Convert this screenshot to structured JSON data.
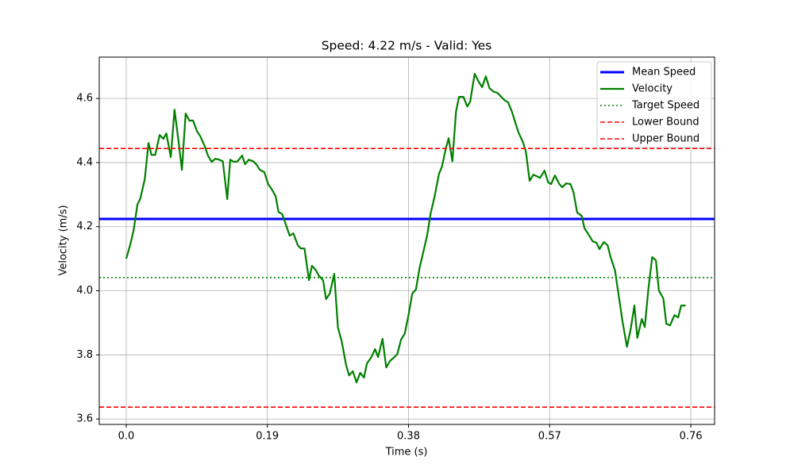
{
  "chart_data": {
    "type": "line",
    "title": "Speed: 4.22 m/s - Valid: Yes",
    "xlabel": "Time (s)",
    "ylabel": "Velocity (m/s)",
    "x": [
      0,
      0.005,
      0.01,
      0.015,
      0.019,
      0.025,
      0.03,
      0.034,
      0.039,
      0.045,
      0.05,
      0.054,
      0.06,
      0.065,
      0.07,
      0.075,
      0.08,
      0.085,
      0.09,
      0.095,
      0.1,
      0.106,
      0.11,
      0.115,
      0.12,
      0.125,
      0.13,
      0.136,
      0.14,
      0.145,
      0.15,
      0.156,
      0.16,
      0.165,
      0.171,
      0.175,
      0.18,
      0.186,
      0.191,
      0.195,
      0.201,
      0.205,
      0.21,
      0.215,
      0.22,
      0.225,
      0.231,
      0.235,
      0.24,
      0.246,
      0.25,
      0.255,
      0.259,
      0.265,
      0.269,
      0.274,
      0.28,
      0.285,
      0.29,
      0.296,
      0.3,
      0.305,
      0.31,
      0.315,
      0.32,
      0.324,
      0.33,
      0.335,
      0.339,
      0.345,
      0.35,
      0.355,
      0.36,
      0.365,
      0.37,
      0.375,
      0.38,
      0.385,
      0.39,
      0.395,
      0.4,
      0.405,
      0.41,
      0.415,
      0.421,
      0.425,
      0.43,
      0.434,
      0.439,
      0.444,
      0.448,
      0.454,
      0.459,
      0.463,
      0.469,
      0.474,
      0.479,
      0.484,
      0.489,
      0.494,
      0.5,
      0.504,
      0.509,
      0.514,
      0.519,
      0.524,
      0.528,
      0.534,
      0.538,
      0.543,
      0.548,
      0.553,
      0.557,
      0.563,
      0.568,
      0.572,
      0.577,
      0.583,
      0.587,
      0.592,
      0.598,
      0.602,
      0.607,
      0.613,
      0.617,
      0.622,
      0.628,
      0.633,
      0.637,
      0.643,
      0.648,
      0.652,
      0.658,
      0.663,
      0.668,
      0.674,
      0.679,
      0.684,
      0.688,
      0.694,
      0.698,
      0.703,
      0.708,
      0.713,
      0.717,
      0.723,
      0.727,
      0.732,
      0.738,
      0.743,
      0.747,
      0.753
    ],
    "series": [
      {
        "name": "Mean Speed",
        "color": "#0000ff",
        "style": "solid",
        "hline": 4.224
      },
      {
        "name": "Velocity",
        "color": "#008000",
        "style": "solid",
        "values": [
          4.1,
          4.14,
          4.189,
          4.268,
          4.288,
          4.348,
          4.461,
          4.424,
          4.424,
          4.486,
          4.474,
          4.491,
          4.417,
          4.565,
          4.474,
          4.377,
          4.553,
          4.531,
          4.531,
          4.499,
          4.481,
          4.449,
          4.422,
          4.402,
          4.412,
          4.409,
          4.404,
          4.286,
          4.409,
          4.402,
          4.404,
          4.422,
          4.395,
          4.409,
          4.404,
          4.395,
          4.377,
          4.37,
          4.333,
          4.32,
          4.296,
          4.246,
          4.239,
          4.206,
          4.172,
          4.179,
          4.142,
          4.132,
          4.132,
          4.033,
          4.078,
          4.065,
          4.048,
          4.033,
          3.974,
          3.991,
          4.053,
          3.885,
          3.843,
          3.768,
          3.736,
          3.749,
          3.714,
          3.744,
          3.729,
          3.773,
          3.793,
          3.818,
          3.793,
          3.85,
          3.761,
          3.781,
          3.791,
          3.803,
          3.848,
          3.867,
          3.924,
          3.991,
          4.004,
          4.073,
          4.122,
          4.172,
          4.244,
          4.293,
          4.365,
          4.387,
          4.442,
          4.476,
          4.404,
          4.56,
          4.605,
          4.605,
          4.575,
          4.59,
          4.677,
          4.654,
          4.635,
          4.669,
          4.632,
          4.622,
          4.617,
          4.607,
          4.595,
          4.588,
          4.56,
          4.523,
          4.494,
          4.464,
          4.434,
          4.343,
          4.362,
          4.357,
          4.352,
          4.375,
          4.338,
          4.333,
          4.36,
          4.333,
          4.323,
          4.335,
          4.333,
          4.308,
          4.244,
          4.234,
          4.194,
          4.177,
          4.154,
          4.15,
          4.13,
          4.152,
          4.142,
          4.105,
          4.063,
          3.984,
          3.905,
          3.825,
          3.88,
          3.954,
          3.853,
          3.912,
          3.887,
          4.008,
          4.105,
          4.095,
          4.001,
          3.976,
          3.897,
          3.892,
          3.924,
          3.917,
          3.954,
          3.954
        ]
      },
      {
        "name": "Target Speed",
        "color": "#008000",
        "style": "dotted",
        "hline": 4.041
      },
      {
        "name": "Lower Bound",
        "color": "#ff0000",
        "style": "dashed",
        "hline": 3.637
      },
      {
        "name": "Upper Bound",
        "color": "#ff0000",
        "style": "dashed",
        "hline": 4.444
      }
    ],
    "xlim": [
      -0.0363,
      0.792
    ],
    "ylim": [
      3.583,
      4.729
    ],
    "xticks": [
      {
        "value": 0,
        "label": "0.0"
      },
      0.19,
      0.38,
      0.57,
      0.76
    ],
    "yticks": [
      {
        "value": 3.6,
        "label": "3.6"
      },
      3.8,
      {
        "value": 4,
        "label": "4.0"
      },
      4.2,
      4.4,
      4.6
    ],
    "grid": true,
    "legend": "upper right"
  }
}
